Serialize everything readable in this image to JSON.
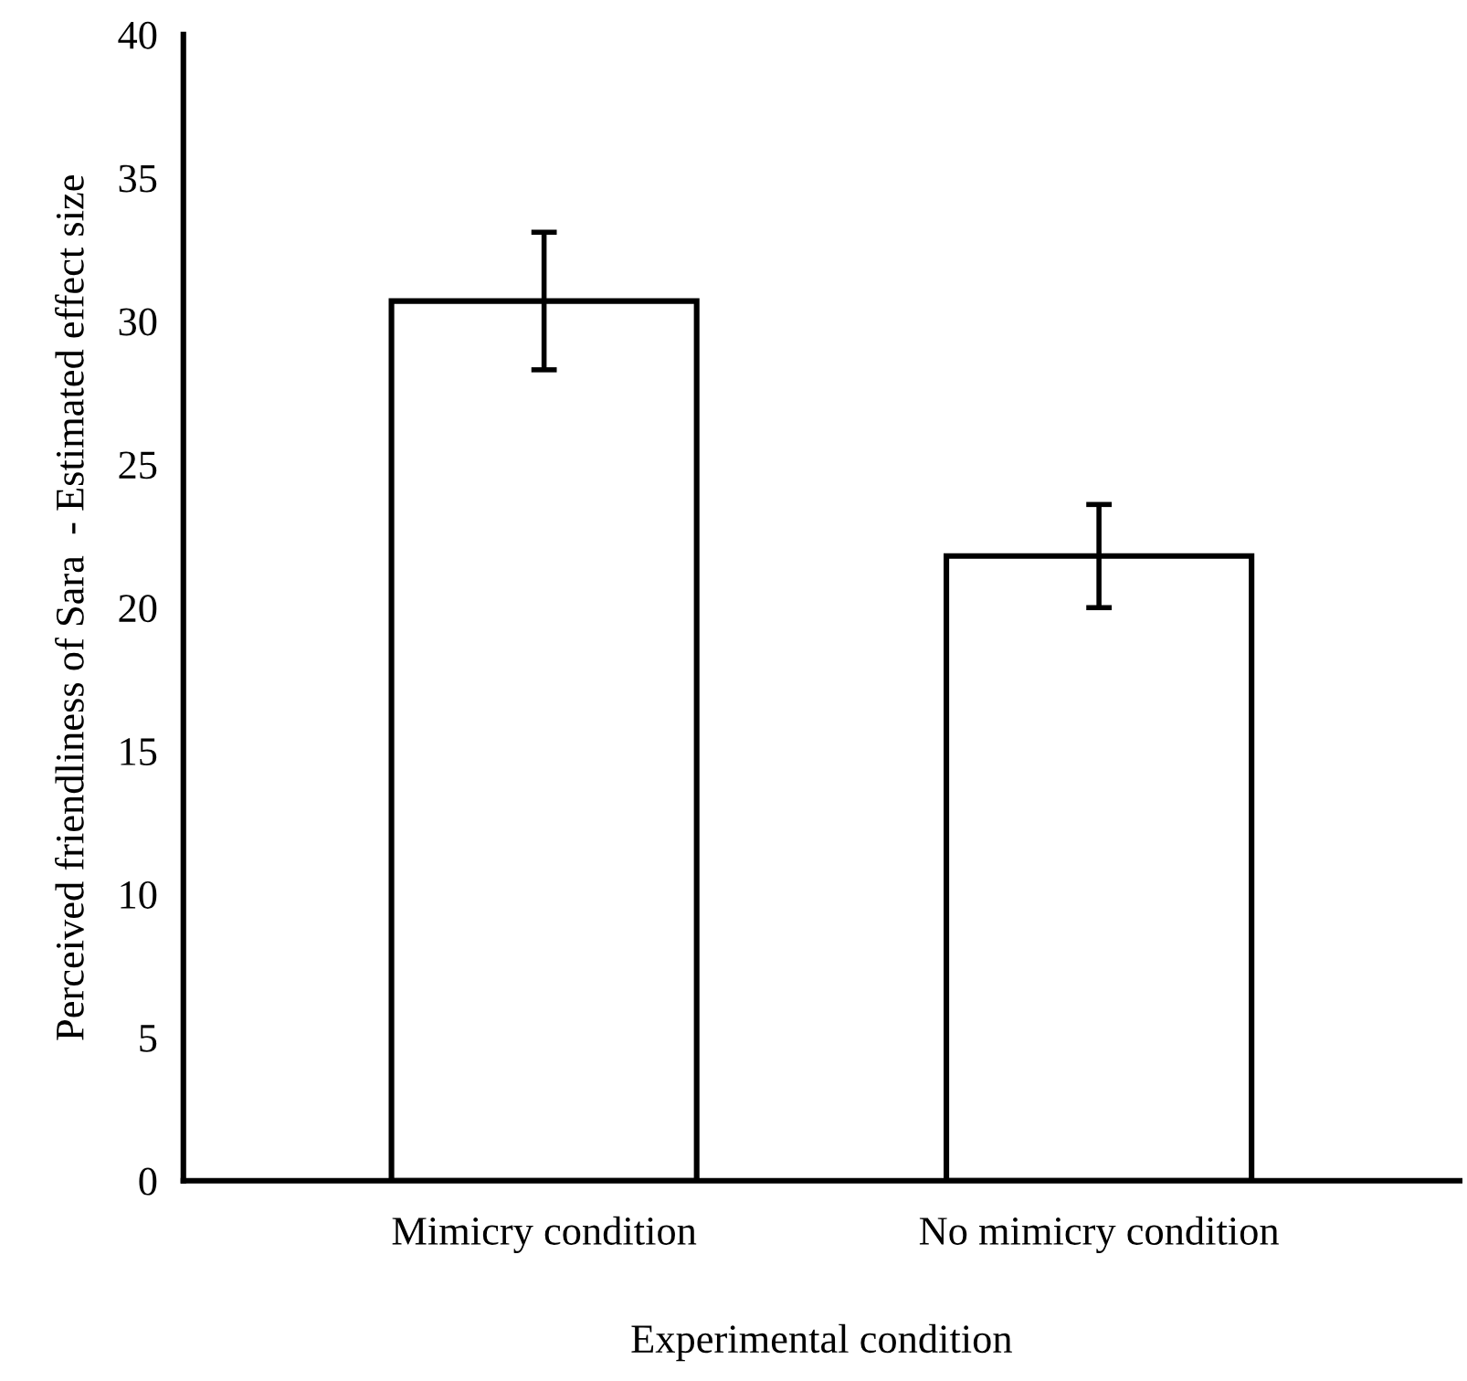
{
  "chart_data": {
    "type": "bar",
    "categories": [
      "Mimicry condition",
      "No mimicry condition"
    ],
    "values": [
      30.7,
      21.8
    ],
    "errors": [
      2.4,
      1.8
    ],
    "color": "#ffffff",
    "xlabel": "Experimental condition",
    "ylabel": "Perceived friendliness of Sara  - Estimated effect size",
    "ylim": [
      0,
      40
    ],
    "yticks": [
      0,
      5,
      10,
      15,
      20,
      25,
      30,
      35,
      40
    ],
    "grid": false,
    "legend": false
  }
}
